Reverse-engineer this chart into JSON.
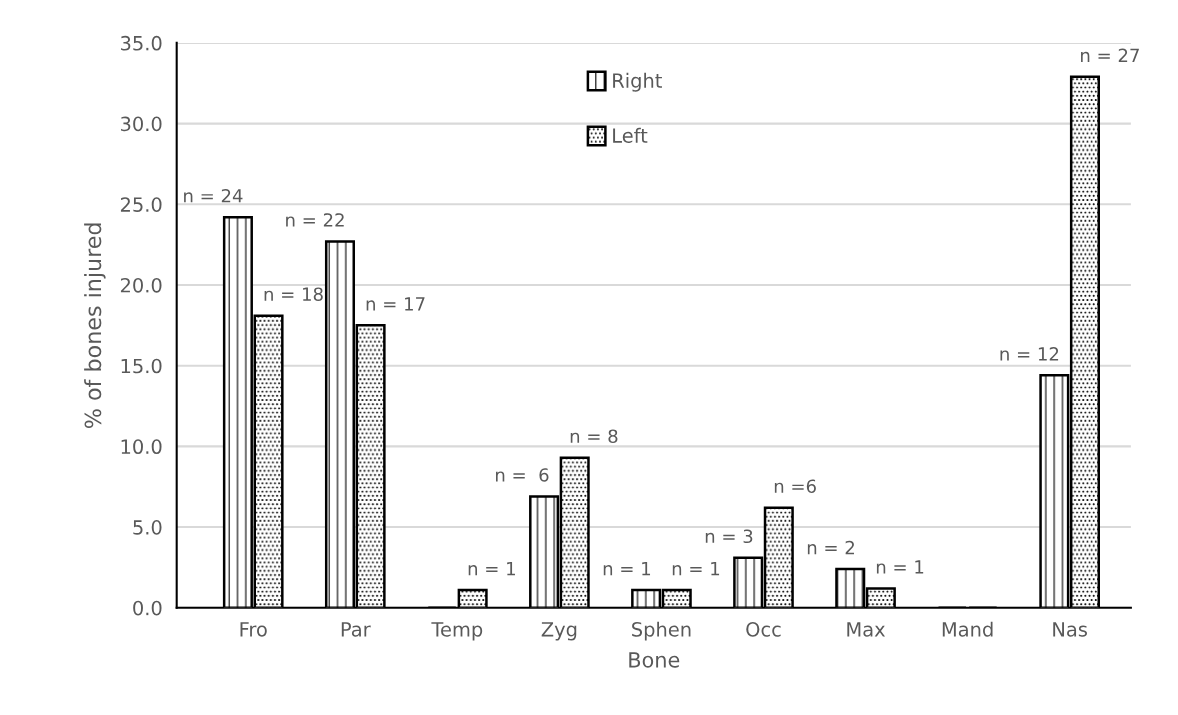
{
  "chart_data": {
    "type": "bar",
    "xlabel": "Bone",
    "ylabel": "% of bones injured",
    "categories": [
      "Fro",
      "Par",
      "Temp",
      "Zyg",
      "Sphen",
      "Occ",
      "Max",
      "Mand",
      "Nas"
    ],
    "series": [
      {
        "name": "Right",
        "color": "#000000",
        "values": [
          24.2,
          22.7,
          0,
          6.9,
          1.1,
          3.1,
          2.4,
          0,
          14.4
        ]
      },
      {
        "name": "Left",
        "color": "#000000",
        "values": [
          18.1,
          17.5,
          1.1,
          9.3,
          1.1,
          6.2,
          1.2,
          0,
          32.9
        ]
      }
    ],
    "annotations": [
      {
        "text": "n = 24",
        "x": "Fro",
        "y": 24.2
      },
      {
        "text": "n = 18",
        "x": "Fro",
        "y": 18.1
      },
      {
        "text": "n = 22",
        "x": "Par",
        "y": 22.7
      },
      {
        "text": "n = 17",
        "x": "Par",
        "y": 17.5
      },
      {
        "text": "n = 1",
        "x": "Temp",
        "y": 1.1
      },
      {
        "text": "n =  6",
        "x": "Zyg",
        "y": 6.9
      },
      {
        "text": "n = 8",
        "x": "Zyg",
        "y": 9.3
      },
      {
        "text": "n = 1",
        "x": "Sphen",
        "y": 1.1
      },
      {
        "text": "n = 1",
        "x": "Sphen",
        "y": 1.1
      },
      {
        "text": "n = 3",
        "x": "Occ",
        "y": 3.1
      },
      {
        "text": "n =6",
        "x": "Occ",
        "y": 6.2
      },
      {
        "text": "n = 2",
        "x": "Max",
        "y": 2.4
      },
      {
        "text": "n = 1",
        "x": "Max",
        "y": 1.2
      },
      {
        "text": "n = 12",
        "x": "Nas",
        "y": 14.4
      },
      {
        "text": "n = 27",
        "x": "Nas",
        "y": 32.9
      }
    ],
    "ylim": [
      0,
      35
    ],
    "yticks": [
      {
        "value": 0,
        "label": "0.0"
      },
      {
        "value": 5,
        "label": "5.0"
      },
      {
        "value": 10,
        "label": "10.0"
      },
      {
        "value": 15,
        "label": "15.0"
      },
      {
        "value": 20,
        "label": "20.0"
      },
      {
        "value": 25,
        "label": "25.0"
      },
      {
        "value": 30,
        "label": "30.0"
      },
      {
        "value": 35,
        "label": "35.0"
      }
    ],
    "grid": "y",
    "legend": "top"
  }
}
